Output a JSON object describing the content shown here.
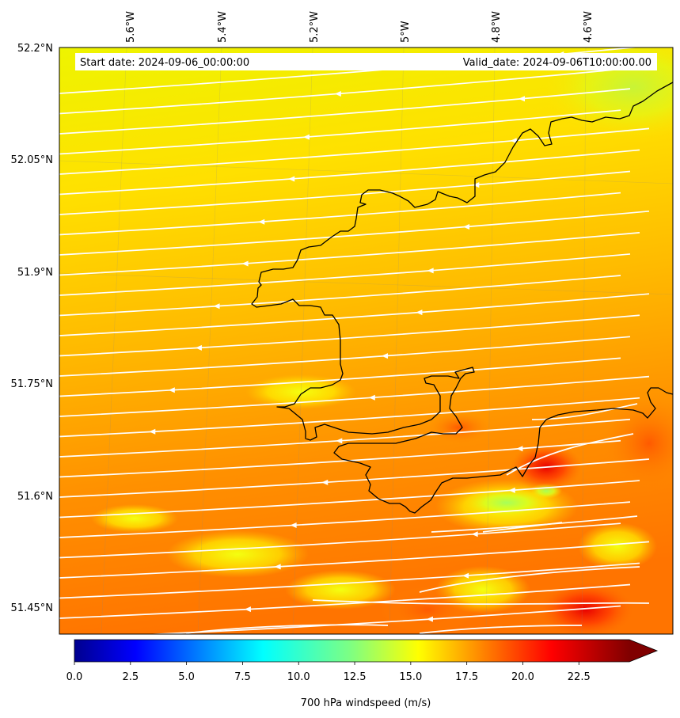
{
  "map": {
    "start_date": "Start date: 2024-09-06_00:00:00",
    "valid_date": "Valid_date: 2024-09-06T10:00:00.00",
    "lon_labels": [
      "5.6°W",
      "5.4°W",
      "5.2°W",
      "5°W",
      "4.8°W",
      "4.6°W"
    ],
    "lat_labels": [
      "52.2°N",
      "52.05°N",
      "51.9°N",
      "51.75°N",
      "51.6°N",
      "51.45°N"
    ],
    "field": "700 hPa windspeed",
    "colors": {
      "field_low": "#f2ff00",
      "field_mid": "#ffcc00",
      "field_high": "#ff6a00",
      "field_max": "#e60000",
      "streamlines": "#ffffff",
      "coastline": "#000000"
    },
    "icons": [
      "streamline-arrow-icon"
    ]
  },
  "colorbar": {
    "label": "700 hPa windspeed (m/s)",
    "ticks": [
      "0.0",
      "2.5",
      "5.0",
      "7.5",
      "10.0",
      "12.5",
      "15.0",
      "17.5",
      "20.0",
      "22.5"
    ],
    "extend": "max"
  }
}
